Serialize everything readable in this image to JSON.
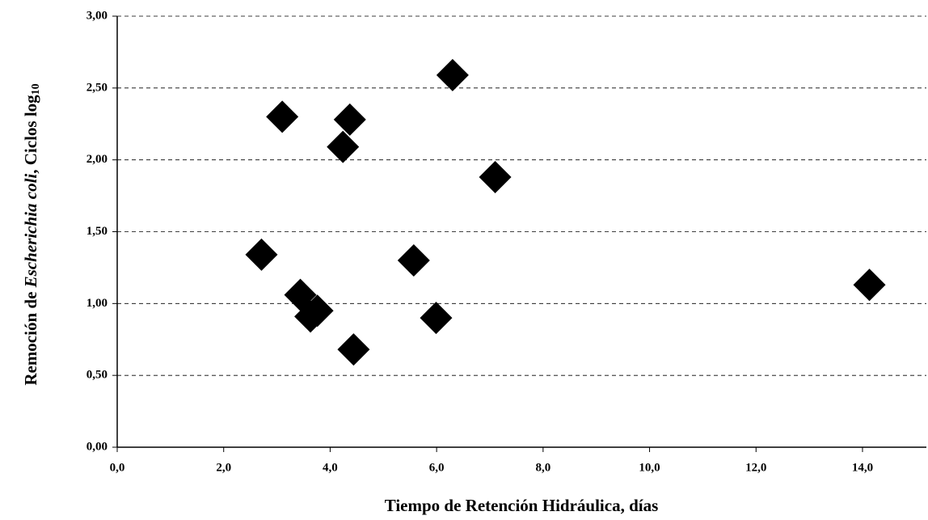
{
  "chart_data": {
    "type": "scatter",
    "xlabel": "Tiempo de Retención Hidráulica, días",
    "ylabel": {
      "parts": [
        "Remoción de ",
        "Escherichia coli",
        ", Ciclos log",
        "10"
      ]
    },
    "x": [
      2.71,
      3.1,
      3.44,
      3.63,
      3.76,
      4.24,
      4.37,
      4.44,
      5.57,
      5.99,
      6.3,
      7.1,
      14.13
    ],
    "values": [
      1.34,
      2.3,
      1.06,
      0.91,
      0.95,
      2.09,
      2.28,
      0.68,
      1.3,
      0.9,
      2.59,
      1.88,
      1.13
    ],
    "color": "#000000",
    "xlim": [
      0,
      15.2
    ],
    "xticks": [
      {
        "value": 0,
        "label": "0,0"
      },
      {
        "value": 2,
        "label": "2,0"
      },
      {
        "value": 4,
        "label": "4,0"
      },
      {
        "value": 6,
        "label": "6,0"
      },
      {
        "value": 8,
        "label": "8,0"
      },
      {
        "value": 10,
        "label": "10,0"
      },
      {
        "value": 12,
        "label": "12,0"
      },
      {
        "value": 14,
        "label": "14,0"
      }
    ],
    "ylim": [
      0,
      3
    ],
    "yticks": [
      {
        "value": 0,
        "label": "0,00"
      },
      {
        "value": 0.5,
        "label": "0,50"
      },
      {
        "value": 1,
        "label": "1,00"
      },
      {
        "value": 1.5,
        "label": "1,50"
      },
      {
        "value": 2,
        "label": "2,00"
      },
      {
        "value": 2.5,
        "label": "2,50"
      },
      {
        "value": 3,
        "label": "3,00"
      }
    ],
    "grid": true
  }
}
